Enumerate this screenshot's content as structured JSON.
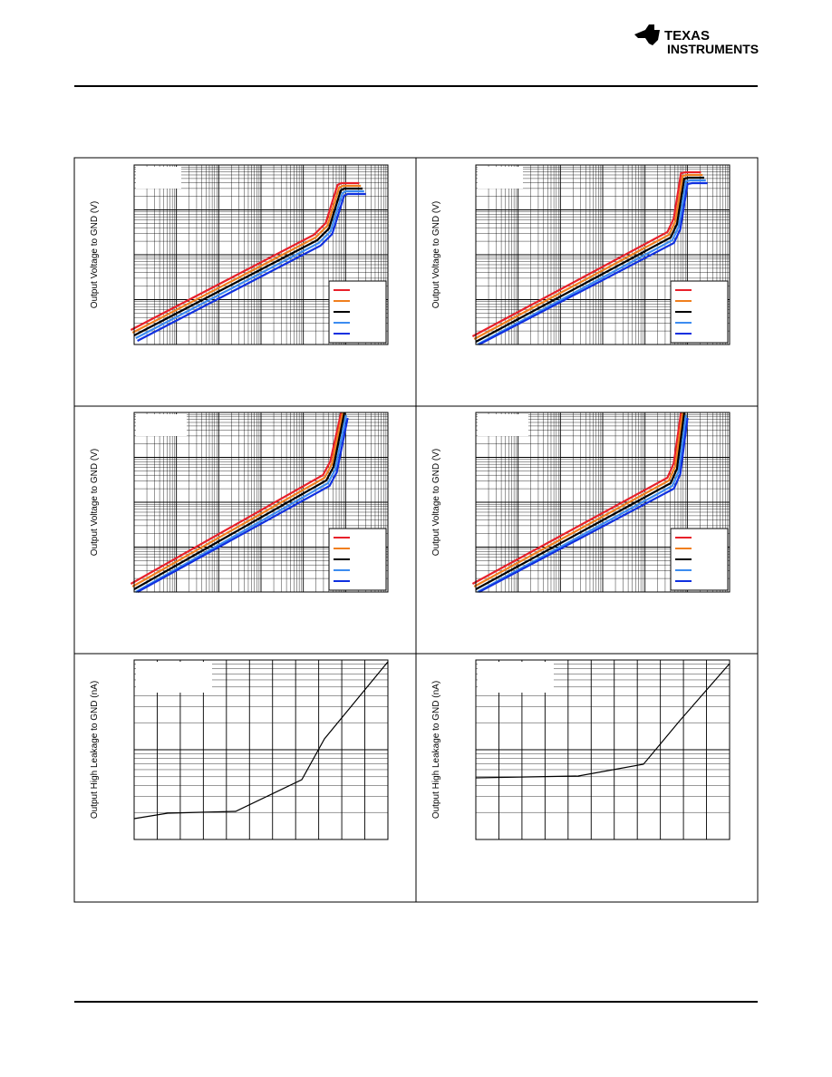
{
  "header": {
    "logo_line1": "TEXAS",
    "logo_line2": "INSTRUMENTS"
  },
  "panels": [
    {
      "y_label": "Output Voltage to GND (V)",
      "legend_colors": [
        "#e8202a",
        "#f07f1e",
        "#000000",
        "#3c8cf0",
        "#1030e0"
      ]
    },
    {
      "y_label": "Output Voltage to GND (V)",
      "legend_colors": [
        "#e8202a",
        "#f07f1e",
        "#000000",
        "#3c8cf0",
        "#1030e0"
      ]
    },
    {
      "y_label": "Output Voltage to GND (V)",
      "legend_colors": [
        "#e8202a",
        "#f07f1e",
        "#000000",
        "#3c8cf0",
        "#1030e0"
      ]
    },
    {
      "y_label": "Output Voltage to GND (V)",
      "legend_colors": [
        "#e8202a",
        "#f07f1e",
        "#000000",
        "#3c8cf0",
        "#1030e0"
      ]
    },
    {
      "y_label": "Output High Leakage to GND (nA)",
      "legend_colors": []
    },
    {
      "y_label": "Output High Leakage to GND (nA)",
      "legend_colors": []
    }
  ]
}
